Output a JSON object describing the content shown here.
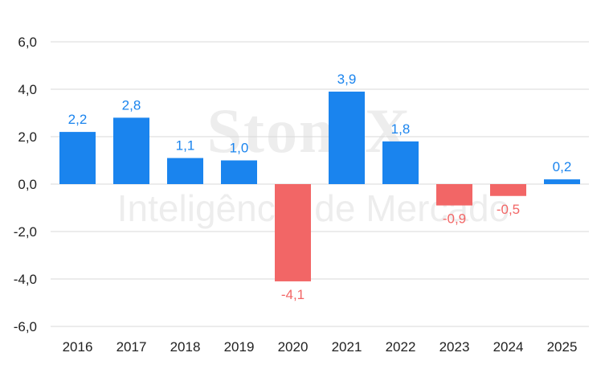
{
  "watermark": {
    "brand": "StoneX",
    "tagline": "Inteligência de Mercado"
  },
  "colors": {
    "positive": "#1a84ee",
    "negative": "#f26666",
    "axis_text": "#222222",
    "grid": "#d9d9d9"
  },
  "chart_data": {
    "type": "bar",
    "categories": [
      "2016",
      "2017",
      "2018",
      "2019",
      "2020",
      "2021",
      "2022",
      "2023",
      "2024",
      "2025"
    ],
    "values": [
      2.2,
      2.8,
      1.1,
      1.0,
      -4.1,
      3.9,
      1.8,
      -0.9,
      -0.5,
      0.2
    ],
    "data_labels": [
      "2,2",
      "2,8",
      "1,1",
      "1,0",
      "-4,1",
      "3,9",
      "1,8",
      "-0,9",
      "-0,5",
      "0,2"
    ],
    "ylim": [
      -6,
      6
    ],
    "yticks": [
      6,
      4,
      2,
      0,
      -2,
      -4,
      -6
    ],
    "ytick_labels": [
      "6,0",
      "4,0",
      "2,0",
      "0,0",
      "-2,0",
      "-4,0",
      "-6,0"
    ],
    "grid": true,
    "legend": "none"
  }
}
